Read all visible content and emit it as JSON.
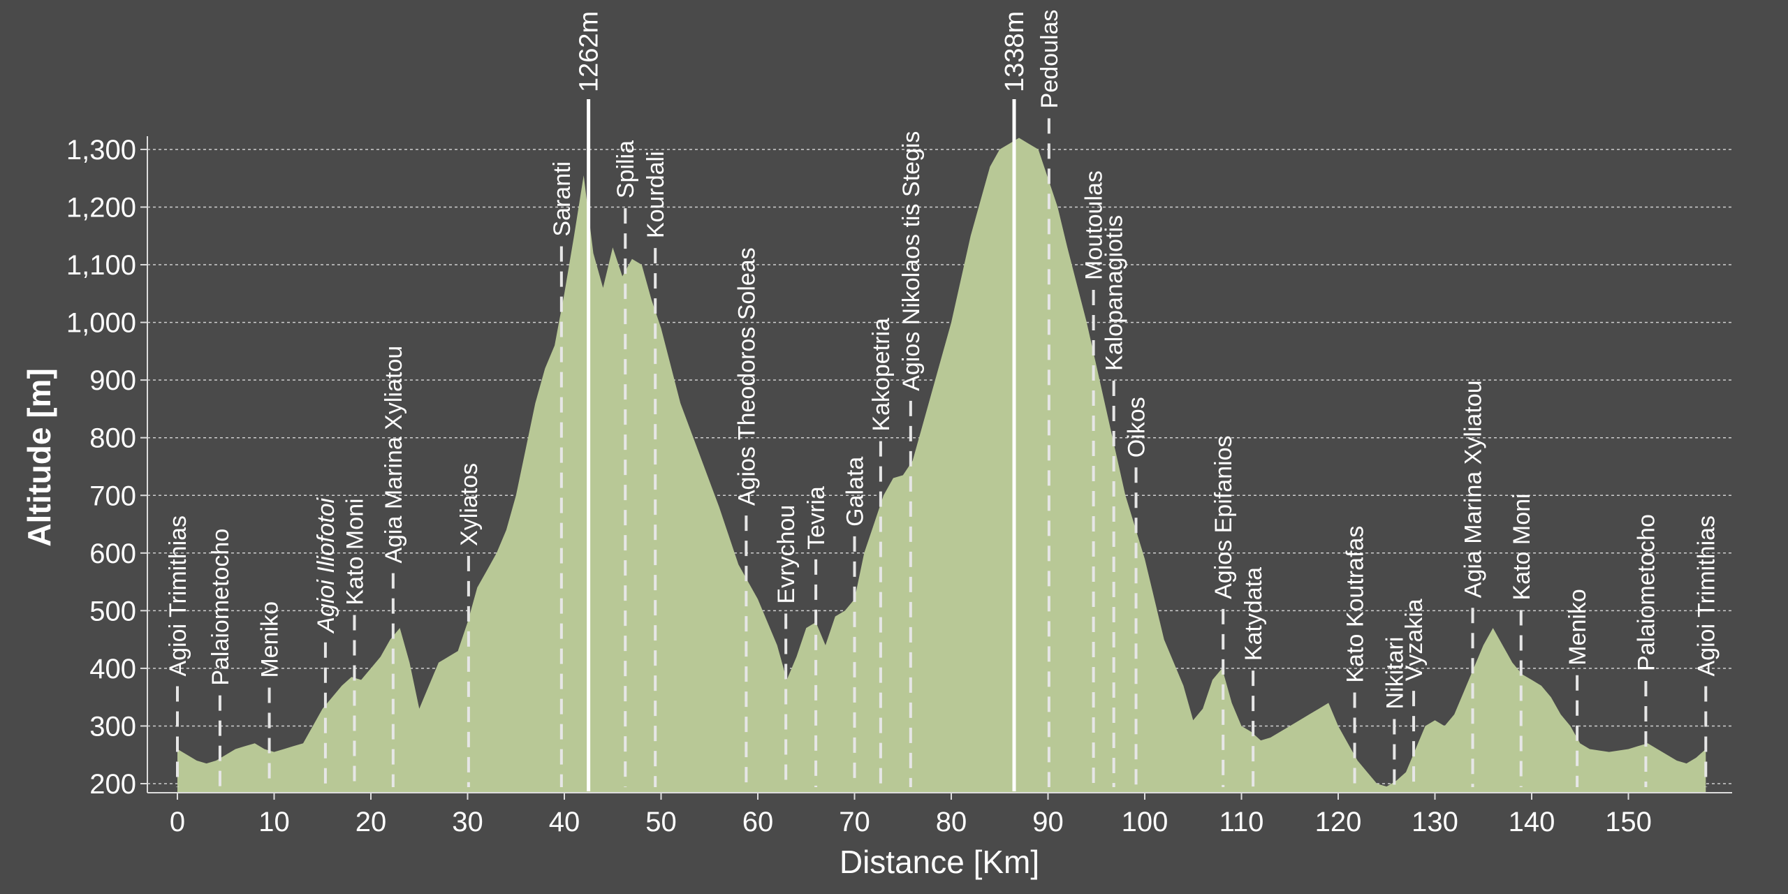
{
  "chart_data": {
    "type": "area",
    "xlabel": "Distance [Km]",
    "ylabel": "Altitude [m]",
    "xlim": [
      -2,
      160
    ],
    "ylim": [
      185,
      1345
    ],
    "x_ticks": [
      0,
      10,
      20,
      30,
      40,
      50,
      60,
      70,
      80,
      90,
      100,
      110,
      120,
      130,
      140,
      150
    ],
    "x_tick_labels": [
      "0",
      "10",
      "20",
      "30",
      "40",
      "50",
      "60",
      "70",
      "80",
      "90",
      "100",
      "110",
      "120",
      "130",
      "140",
      "150"
    ],
    "y_ticks": [
      200,
      300,
      400,
      500,
      600,
      700,
      800,
      900,
      1000,
      1100,
      1200,
      1300
    ],
    "y_tick_labels": [
      "200",
      "300",
      "400",
      "500",
      "600",
      "700",
      "800",
      "900",
      "1,000",
      "1,100",
      "1,200",
      "1,300"
    ],
    "grid": true,
    "fill_color": "#b8c896",
    "background_color": "#4a4a4a",
    "profile": {
      "x": [
        0,
        1,
        2,
        3,
        4,
        5,
        6,
        7,
        8,
        9,
        10,
        11,
        12,
        13,
        14,
        15,
        16,
        17,
        18,
        19,
        20,
        21,
        22,
        23,
        24,
        25,
        26,
        27,
        28,
        29,
        30,
        31,
        32,
        33,
        34,
        35,
        36,
        37,
        38,
        39,
        40,
        41,
        42,
        43,
        44,
        45,
        46,
        47,
        48,
        49,
        50,
        52,
        54,
        56,
        58,
        60,
        62,
        63,
        64,
        65,
        66,
        67,
        68,
        69,
        70,
        71,
        72,
        73,
        74,
        75,
        76,
        77,
        78,
        80,
        82,
        84,
        85,
        86,
        87,
        88,
        89,
        90,
        91,
        92,
        94,
        96,
        98,
        100,
        102,
        104,
        105,
        106,
        107,
        108,
        109,
        110,
        111,
        112,
        113,
        114,
        115,
        116,
        117,
        118,
        119,
        120,
        121,
        122,
        123,
        124,
        125,
        126,
        127,
        128,
        129,
        130,
        131,
        132,
        133,
        134,
        135,
        136,
        137,
        138,
        139,
        140,
        141,
        142,
        143,
        144,
        145,
        146,
        148,
        150,
        151,
        152,
        153,
        154,
        155,
        156,
        157,
        158
      ],
      "y": [
        260,
        250,
        240,
        235,
        240,
        250,
        260,
        265,
        270,
        260,
        255,
        260,
        265,
        270,
        300,
        330,
        350,
        370,
        385,
        380,
        400,
        420,
        450,
        470,
        410,
        330,
        370,
        410,
        420,
        430,
        480,
        540,
        570,
        600,
        640,
        700,
        780,
        860,
        920,
        960,
        1050,
        1150,
        1255,
        1120,
        1060,
        1130,
        1080,
        1110,
        1100,
        1040,
        990,
        860,
        770,
        680,
        580,
        520,
        440,
        380,
        420,
        470,
        480,
        440,
        490,
        500,
        520,
        600,
        650,
        700,
        730,
        735,
        760,
        820,
        880,
        1000,
        1150,
        1270,
        1300,
        1310,
        1320,
        1310,
        1300,
        1250,
        1200,
        1130,
        1000,
        850,
        700,
        590,
        450,
        370,
        310,
        330,
        380,
        400,
        340,
        300,
        290,
        275,
        280,
        290,
        300,
        310,
        320,
        330,
        340,
        300,
        270,
        240,
        220,
        200,
        195,
        205,
        220,
        260,
        300,
        310,
        300,
        320,
        360,
        400,
        440,
        470,
        440,
        410,
        390,
        380,
        370,
        350,
        320,
        300,
        270,
        260,
        255,
        260,
        265,
        270,
        260,
        250,
        240,
        235,
        245,
        260
      ]
    },
    "peaks": [
      {
        "x": 42.5,
        "label": "1262m"
      },
      {
        "x": 86.5,
        "label": "1338m"
      }
    ],
    "waypoints": [
      {
        "x": 0.0,
        "label": "Agioi Trimithias"
      },
      {
        "x": 4.4,
        "label": "Palaiometocho"
      },
      {
        "x": 9.5,
        "label": "Meniko"
      },
      {
        "x": 15.3,
        "label": "Agioi Iliofotoi",
        "italic": true
      },
      {
        "x": 18.3,
        "label": "Kato Moni"
      },
      {
        "x": 22.3,
        "label": "Agia Marina Xyliatou"
      },
      {
        "x": 30.1,
        "label": "Xyliatos"
      },
      {
        "x": 39.7,
        "label": "Saranti"
      },
      {
        "x": 46.3,
        "label": "Spilia"
      },
      {
        "x": 49.4,
        "label": "Kourdali"
      },
      {
        "x": 58.8,
        "label": "Agios Theodoros Soleas"
      },
      {
        "x": 62.9,
        "label": "Evrychou"
      },
      {
        "x": 66.0,
        "label": "Tevria"
      },
      {
        "x": 70.0,
        "label": "Galata"
      },
      {
        "x": 72.7,
        "label": "Kakopetria"
      },
      {
        "x": 75.8,
        "label": "Agios Nikolaos tis Stegis"
      },
      {
        "x": 90.1,
        "label": "Pedoulas"
      },
      {
        "x": 94.7,
        "label": "Moutoulas"
      },
      {
        "x": 96.8,
        "label": "Kalopanagiotis"
      },
      {
        "x": 99.1,
        "label": "Oikos"
      },
      {
        "x": 108.1,
        "label": "Agios Epifanios"
      },
      {
        "x": 111.2,
        "label": "Katydata"
      },
      {
        "x": 121.7,
        "label": "Kato Koutrafas"
      },
      {
        "x": 125.8,
        "label": "Nikitari"
      },
      {
        "x": 127.8,
        "label": "Vyzakia"
      },
      {
        "x": 133.9,
        "label": "Agia Marina Xyliatou"
      },
      {
        "x": 138.9,
        "label": "Kato Moni"
      },
      {
        "x": 144.7,
        "label": "Meniko"
      },
      {
        "x": 151.8,
        "label": "Palaiometocho"
      },
      {
        "x": 158.0,
        "label": "Agioi Trimithias"
      }
    ]
  }
}
